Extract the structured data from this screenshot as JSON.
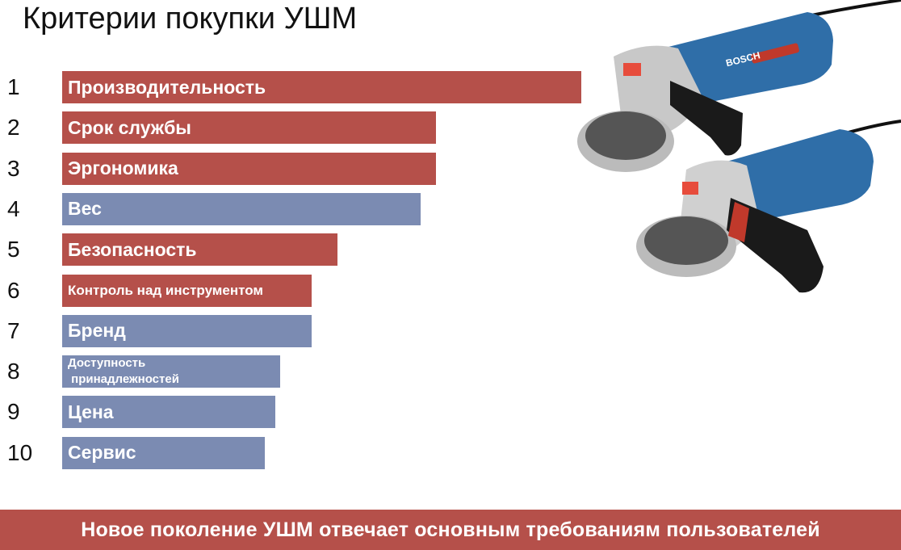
{
  "title": "Критерии покупки УШМ",
  "footer": "Новое поколение УШМ отвечает основным требованиям пользователей",
  "image": {
    "description_icon": "angle-grinder-icon",
    "brand_text": "BOSCH"
  },
  "colors": {
    "red": "#b5504a",
    "blue": "#7b8bb2",
    "footer": "#b5504a"
  },
  "chart_data": {
    "type": "bar",
    "orientation": "horizontal",
    "title": "Критерии покупки УШМ",
    "xlim": [
      0,
      100
    ],
    "grid": false,
    "categories": [
      "Производительность",
      "Срок службы",
      "Эргономика",
      "Вес",
      "Безопасность",
      "Контроль над инструментом",
      "Бренд",
      "Доступность\n принадлежностей",
      "Цена",
      "Сервис"
    ],
    "ranks": [
      "1",
      "2",
      "3",
      "4",
      "5",
      "6",
      "7",
      "8",
      "9",
      "10"
    ],
    "values": [
      100,
      72,
      72,
      69,
      53,
      48,
      48,
      42,
      41,
      39
    ],
    "bar_colors": [
      "red",
      "red",
      "red",
      "blue",
      "red",
      "red",
      "blue",
      "blue",
      "blue",
      "blue"
    ]
  }
}
